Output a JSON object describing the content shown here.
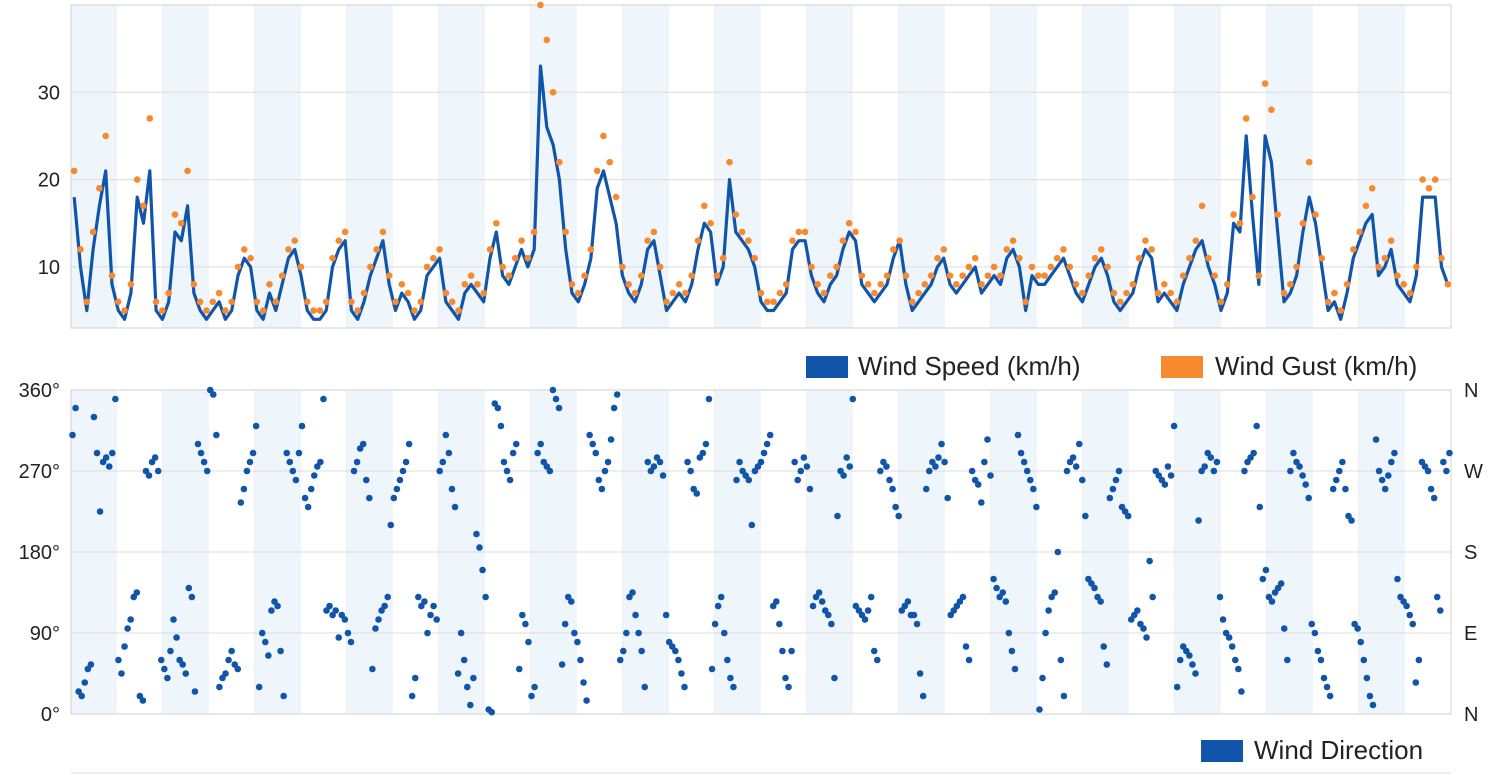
{
  "colors": {
    "wind_speed": "#1155aa",
    "wind_gust": "#f78a2e",
    "wind_direction": "#1155aa",
    "band": "#eef5fb",
    "grid": "#dcdcdc"
  },
  "chart_data": [
    {
      "type": "line",
      "title": "",
      "xlabel": "",
      "ylabel": "",
      "ylim": [
        3,
        40
      ],
      "yticks": [
        "10",
        "20",
        "30"
      ],
      "ytick_values": [
        10,
        20,
        30
      ],
      "x_count": 30,
      "grid": true,
      "legend_position": "bottom-right",
      "series": [
        {
          "name": "Wind Speed (km/h)",
          "kind": "line",
          "color": "#1155aa",
          "values": [
            18,
            10,
            5,
            12,
            17,
            21,
            8,
            5,
            4,
            7,
            18,
            15,
            21,
            5,
            4,
            6,
            14,
            13,
            17,
            7,
            5,
            4,
            5,
            6,
            4,
            5,
            9,
            11,
            10,
            5,
            4,
            7,
            5,
            8,
            11,
            12,
            9,
            5,
            4,
            4,
            5,
            10,
            12,
            13,
            5,
            4,
            6,
            9,
            11,
            13,
            8,
            5,
            7,
            6,
            4,
            5,
            9,
            10,
            11,
            6,
            5,
            4,
            7,
            8,
            7,
            6,
            11,
            14,
            9,
            8,
            10,
            12,
            10,
            12,
            33,
            26,
            24,
            20,
            12,
            7,
            6,
            8,
            11,
            19,
            21,
            18,
            15,
            9,
            7,
            6,
            8,
            12,
            13,
            9,
            5,
            6,
            7,
            6,
            8,
            12,
            15,
            14,
            8,
            10,
            20,
            14,
            13,
            12,
            10,
            6,
            5,
            5,
            6,
            7,
            12,
            13,
            13,
            9,
            7,
            6,
            8,
            9,
            12,
            14,
            13,
            8,
            7,
            6,
            7,
            8,
            11,
            13,
            8,
            5,
            6,
            7,
            8,
            10,
            11,
            8,
            7,
            8,
            9,
            10,
            7,
            8,
            9,
            8,
            11,
            12,
            10,
            5,
            9,
            8,
            8,
            9,
            10,
            11,
            9,
            7,
            6,
            8,
            10,
            11,
            9,
            6,
            5,
            6,
            7,
            10,
            12,
            11,
            6,
            7,
            6,
            5,
            8,
            10,
            12,
            13,
            10,
            8,
            5,
            7,
            15,
            14,
            25,
            16,
            8,
            25,
            22,
            14,
            6,
            7,
            9,
            14,
            18,
            15,
            10,
            5,
            6,
            4,
            7,
            11,
            13,
            15,
            16,
            9,
            10,
            12,
            8,
            7,
            6,
            9,
            18,
            18,
            18,
            10,
            8
          ]
        },
        {
          "name": "Wind Gust (km/h)",
          "kind": "scatter",
          "color": "#f78a2e",
          "values": [
            21,
            12,
            6,
            14,
            19,
            25,
            9,
            6,
            5,
            8,
            20,
            17,
            27,
            6,
            5,
            7,
            16,
            15,
            21,
            8,
            6,
            5,
            6,
            7,
            5,
            6,
            10,
            12,
            11,
            6,
            5,
            8,
            6,
            9,
            12,
            13,
            10,
            6,
            5,
            5,
            6,
            11,
            13,
            14,
            6,
            5,
            7,
            10,
            12,
            14,
            9,
            6,
            8,
            7,
            5,
            6,
            10,
            11,
            12,
            7,
            6,
            5,
            8,
            9,
            8,
            7,
            12,
            15,
            10,
            9,
            11,
            13,
            11,
            14,
            40,
            36,
            30,
            22,
            14,
            8,
            7,
            9,
            12,
            21,
            25,
            22,
            18,
            10,
            8,
            7,
            9,
            13,
            14,
            10,
            6,
            7,
            8,
            7,
            9,
            13,
            17,
            15,
            9,
            11,
            22,
            16,
            14,
            13,
            11,
            7,
            6,
            6,
            7,
            8,
            13,
            14,
            14,
            10,
            8,
            7,
            9,
            10,
            13,
            15,
            14,
            9,
            8,
            7,
            8,
            9,
            12,
            13,
            9,
            6,
            7,
            8,
            9,
            11,
            12,
            9,
            8,
            9,
            10,
            11,
            8,
            9,
            10,
            9,
            12,
            13,
            11,
            6,
            10,
            9,
            9,
            10,
            11,
            12,
            10,
            8,
            7,
            9,
            11,
            12,
            10,
            7,
            6,
            7,
            8,
            11,
            13,
            12,
            7,
            8,
            7,
            6,
            9,
            11,
            13,
            17,
            11,
            9,
            6,
            8,
            16,
            15,
            27,
            18,
            9,
            31,
            28,
            16,
            7,
            8,
            10,
            15,
            22,
            16,
            11,
            6,
            7,
            5,
            8,
            12,
            14,
            17,
            19,
            10,
            11,
            13,
            9,
            8,
            7,
            10,
            20,
            19,
            20,
            11,
            8
          ]
        }
      ]
    },
    {
      "type": "scatter",
      "title": "",
      "xlabel": "",
      "ylabel": "",
      "ylim": [
        0,
        360
      ],
      "yticks": [
        "0°",
        "90°",
        "180°",
        "270°",
        "360°"
      ],
      "ytick_values": [
        0,
        90,
        180,
        270,
        360
      ],
      "yticks_right": [
        "N",
        "E",
        "S",
        "W",
        "N"
      ],
      "x_count": 30,
      "grid": true,
      "legend_position": "bottom-right",
      "series": [
        {
          "name": "Wind Direction",
          "color": "#1155aa",
          "values": [
            310,
            340,
            25,
            20,
            35,
            50,
            55,
            330,
            290,
            225,
            280,
            285,
            275,
            290,
            350,
            60,
            45,
            75,
            95,
            105,
            130,
            135,
            20,
            15,
            270,
            265,
            280,
            285,
            270,
            60,
            50,
            40,
            70,
            105,
            85,
            60,
            55,
            45,
            140,
            130,
            25,
            300,
            290,
            280,
            270,
            360,
            355,
            310,
            30,
            40,
            45,
            60,
            70,
            55,
            50,
            235,
            250,
            270,
            280,
            290,
            320,
            30,
            90,
            80,
            65,
            115,
            125,
            120,
            70,
            20,
            290,
            280,
            270,
            260,
            290,
            320,
            240,
            230,
            250,
            265,
            275,
            280,
            350,
            115,
            120,
            110,
            115,
            85,
            110,
            105,
            90,
            80,
            270,
            280,
            295,
            300,
            260,
            240,
            50,
            95,
            105,
            115,
            120,
            130,
            210,
            240,
            250,
            260,
            270,
            280,
            300,
            20,
            40,
            130,
            120,
            125,
            90,
            110,
            120,
            105,
            270,
            280,
            310,
            290,
            250,
            230,
            45,
            90,
            60,
            30,
            10,
            40,
            200,
            185,
            160,
            130,
            5,
            2,
            345,
            340,
            320,
            280,
            270,
            260,
            290,
            300,
            50,
            110,
            100,
            80,
            20,
            30,
            290,
            300,
            280,
            275,
            270,
            360,
            350,
            340,
            55,
            100,
            130,
            125,
            90,
            80,
            60,
            35,
            15,
            310,
            300,
            290,
            260,
            250,
            270,
            280,
            305,
            340,
            355,
            60,
            70,
            90,
            130,
            135,
            110,
            90,
            70,
            30,
            280,
            270,
            275,
            285,
            280,
            265,
            110,
            80,
            75,
            70,
            60,
            45,
            30,
            280,
            270,
            250,
            245,
            285,
            290,
            300,
            350,
            50,
            100,
            120,
            130,
            90,
            60,
            40,
            30,
            260,
            280,
            270,
            265,
            260,
            210,
            270,
            275,
            280,
            290,
            300,
            310,
            120,
            125,
            100,
            70,
            40,
            30,
            70,
            280,
            260,
            270,
            285,
            275,
            250,
            120,
            130,
            135,
            125,
            115,
            110,
            100,
            40,
            220,
            270,
            265,
            285,
            275,
            350,
            120,
            115,
            110,
            105,
            115,
            130,
            70,
            60,
            270,
            280,
            275,
            260,
            250,
            230,
            220,
            115,
            120,
            125,
            110,
            110,
            100,
            45,
            20,
            250,
            270,
            280,
            275,
            285,
            300,
            280,
            240,
            110,
            115,
            120,
            125,
            130,
            75,
            60,
            270,
            260,
            255,
            235,
            280,
            305,
            265,
            150,
            140,
            130,
            135,
            125,
            90,
            70,
            50,
            310,
            290,
            280,
            270,
            260,
            250,
            230,
            5,
            40,
            90,
            115,
            130,
            135,
            180,
            60,
            20,
            270,
            280,
            285,
            275,
            300,
            260,
            220,
            150,
            145,
            140,
            130,
            125,
            75,
            55,
            240,
            250,
            260,
            270,
            230,
            225,
            220,
            105,
            110,
            115,
            100,
            95,
            85,
            170,
            130,
            270,
            265,
            260,
            255,
            275,
            265,
            320,
            30,
            60,
            75,
            70,
            65,
            55,
            45,
            215,
            270,
            275,
            290,
            285,
            270,
            280,
            130,
            105,
            90,
            85,
            75,
            60,
            50,
            25,
            270,
            280,
            285,
            290,
            320,
            230,
            150,
            160,
            130,
            125,
            135,
            140,
            145,
            95,
            60,
            270,
            290,
            280,
            275,
            265,
            255,
            240,
            100,
            90,
            70,
            60,
            40,
            30,
            20,
            250,
            260,
            270,
            280,
            250,
            220,
            215,
            100,
            95,
            80,
            60,
            40,
            20,
            10,
            305,
            270,
            260,
            250,
            265,
            280,
            290,
            150,
            130,
            125,
            120,
            110,
            100,
            35,
            60,
            280,
            275,
            270,
            250,
            240,
            130,
            115,
            280,
            270,
            290
          ]
        }
      ]
    }
  ]
}
